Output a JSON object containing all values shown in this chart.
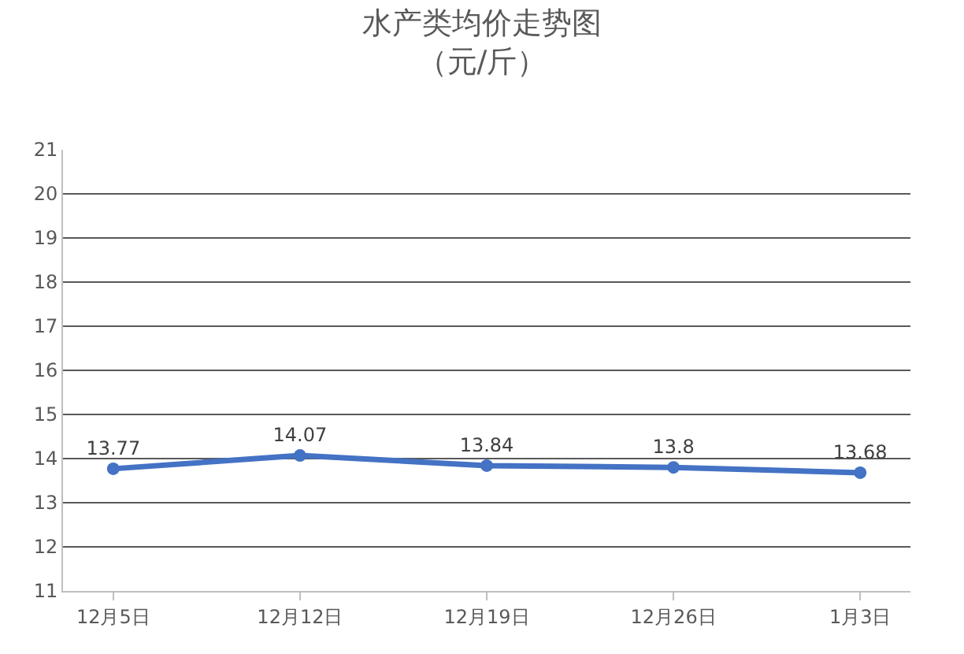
{
  "chart_data": {
    "type": "line",
    "title": "水产类均价走势图",
    "subtitle": "（元/斤）",
    "categories": [
      "12月5日",
      "12月12日",
      "12月19日",
      "12月26日",
      "1月3日"
    ],
    "series": [
      {
        "color": "#4472c4",
        "values": [
          13.77,
          14.07,
          13.84,
          13.8,
          13.68
        ]
      }
    ],
    "ylim": [
      11,
      21
    ],
    "yticks": [
      11,
      12,
      13,
      14,
      15,
      16,
      17,
      18,
      19,
      20,
      21
    ],
    "grid": "y",
    "marker": "circle",
    "line_style": "solid",
    "data_labels": true
  }
}
